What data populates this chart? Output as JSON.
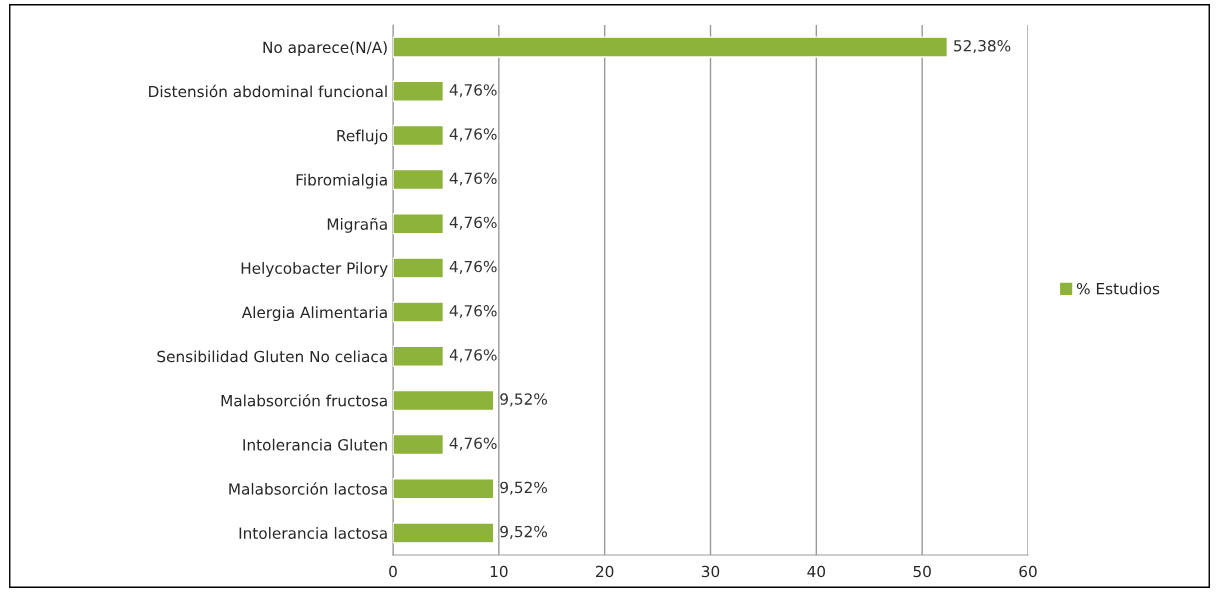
{
  "chart_data": {
    "type": "bar",
    "orientation": "horizontal",
    "categories": [
      "No aparece(N/A)",
      "Distensión abdominal funcional",
      "Reflujo",
      "Fibromialgia",
      "Migraña",
      "Helycobacter Pilory",
      "Alergia Alimentaria",
      "Sensibilidad Gluten No celiaca",
      "Malabsorción fructosa",
      "Intolerancia Gluten",
      "Malabsorción lactosa",
      "Intolerancia lactosa"
    ],
    "series": [
      {
        "name": "% Estudios",
        "color": "#8db33a",
        "values": [
          52.38,
          4.76,
          4.76,
          4.76,
          4.76,
          4.76,
          4.76,
          4.76,
          9.52,
          4.76,
          9.52,
          9.52
        ],
        "value_labels": [
          "52,38%",
          "4,76%",
          "4,76%",
          "4,76%",
          "4,76%",
          "4,76%",
          "4,76%",
          "4,76%",
          "9,52%",
          "4,76%",
          "9,52%",
          "9,52%"
        ]
      }
    ],
    "xlim": [
      0,
      60
    ],
    "xticks": [
      0,
      10,
      20,
      30,
      40,
      50,
      60
    ],
    "grid": "x",
    "legend": "right"
  }
}
